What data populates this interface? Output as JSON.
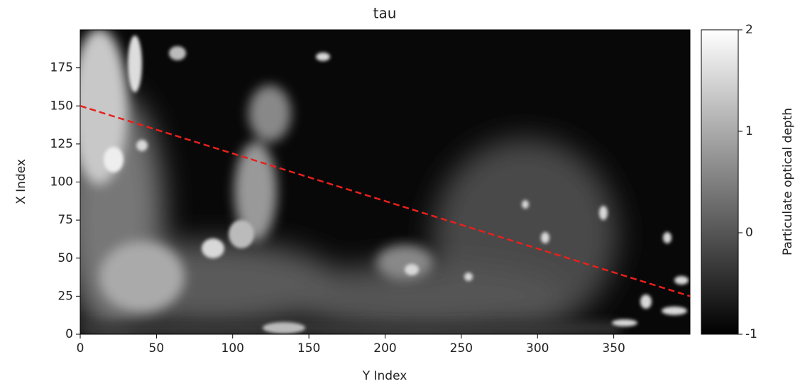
{
  "chart_data": {
    "type": "heatmap",
    "title": "tau",
    "xlabel": "Y Index",
    "ylabel": "X Index",
    "xlim": [
      0,
      400
    ],
    "ylim": [
      0,
      200
    ],
    "xticks": [
      0,
      50,
      100,
      150,
      200,
      250,
      300,
      350
    ],
    "yticks": [
      0,
      25,
      50,
      75,
      100,
      125,
      150,
      175
    ],
    "colormap": [
      "#000000",
      "#ffffff"
    ],
    "colorbar": {
      "label": "Particulate optical depth",
      "lim": [
        -1,
        2
      ],
      "ticks": [
        -1,
        0,
        1,
        2
      ]
    },
    "series": [
      {
        "color": "#e8201c",
        "dashed": true,
        "x": [
          0,
          400
        ],
        "values": [
          150,
          25
        ]
      }
    ]
  }
}
